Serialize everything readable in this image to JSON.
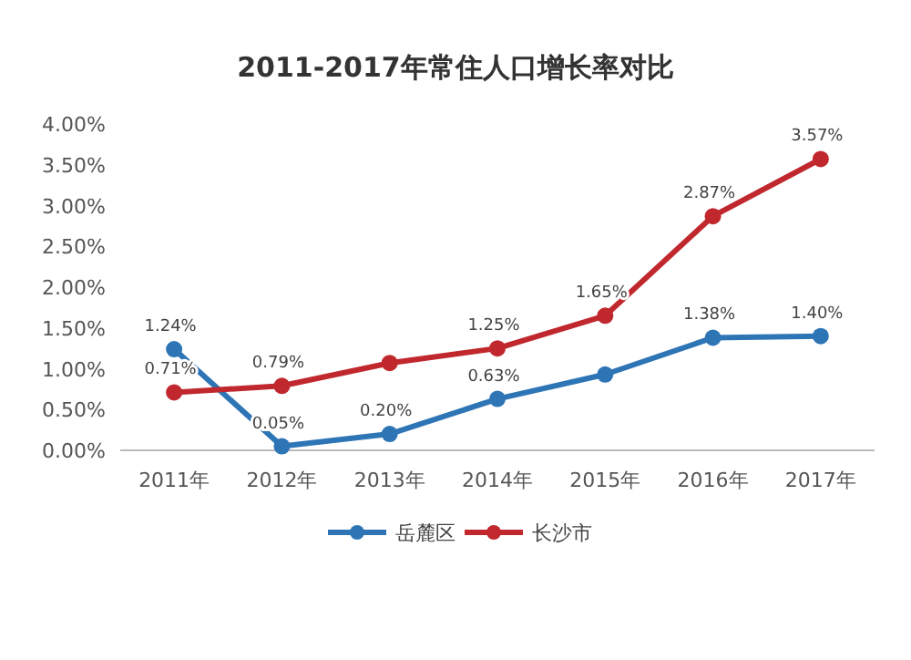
{
  "chart_data": {
    "type": "line",
    "title": "2011-2017年常住人口增长率对比",
    "categories": [
      "2011年",
      "2012年",
      "2013年",
      "2014年",
      "2015年",
      "2016年",
      "2017年"
    ],
    "series": [
      {
        "name": "岳麓区",
        "color": "#2e75b6",
        "values": [
          1.24,
          0.05,
          0.2,
          0.63,
          0.93,
          1.38,
          1.4
        ],
        "value_labels": [
          "1.24%",
          "0.05%",
          "0.20%",
          "0.63%",
          null,
          "1.38%",
          "1.40%"
        ]
      },
      {
        "name": "长沙市",
        "color": "#c0282e",
        "values": [
          0.71,
          0.79,
          1.07,
          1.25,
          1.65,
          2.87,
          3.57
        ],
        "value_labels": [
          "0.71%",
          "0.79%",
          null,
          "1.25%",
          "1.65%",
          "2.87%",
          "3.57%"
        ]
      }
    ],
    "ylim": [
      0,
      4
    ],
    "yticks": [
      {
        "value": 0,
        "label": "0.00%"
      },
      {
        "value": 0.5,
        "label": "0.50%"
      },
      {
        "value": 1,
        "label": "1.00%"
      },
      {
        "value": 1.5,
        "label": "1.50%"
      },
      {
        "value": 2,
        "label": "2.00%"
      },
      {
        "value": 2.5,
        "label": "2.50%"
      },
      {
        "value": 3,
        "label": "3.00%"
      },
      {
        "value": 3.5,
        "label": "3.50%"
      },
      {
        "value": 4,
        "label": "4.00%"
      }
    ],
    "grid": false,
    "legend": "bottom",
    "marker": "circle",
    "line_style": "solid"
  }
}
